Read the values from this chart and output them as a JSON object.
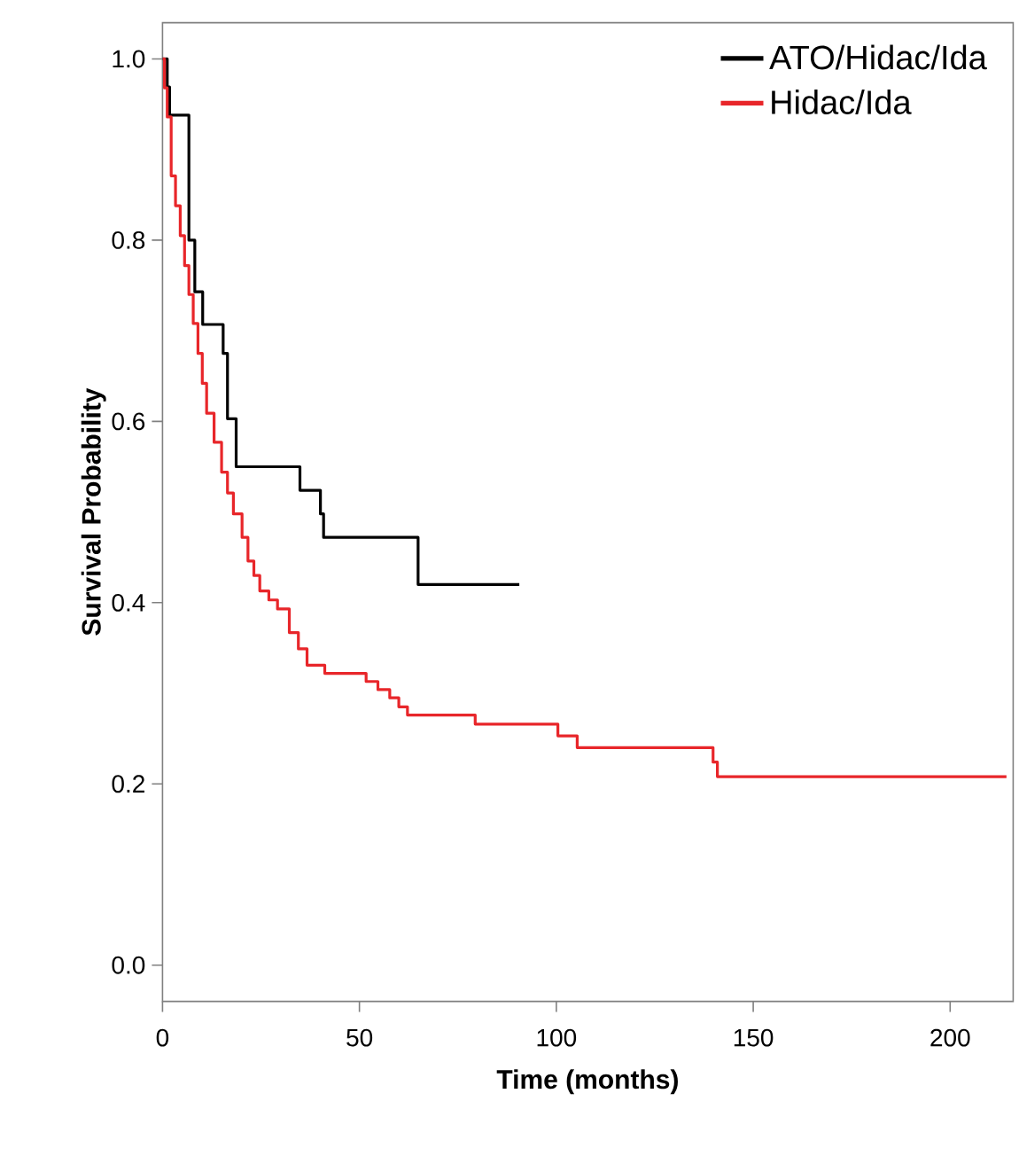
{
  "chart_data": {
    "type": "step",
    "xlabel": "Time  (months)",
    "ylabel": "Survival Probability",
    "xlim": [
      0,
      216
    ],
    "ylim": [
      -0.04,
      1.04
    ],
    "xticks": [
      0,
      50,
      100,
      150,
      200
    ],
    "yticks": [
      {
        "value": 0,
        "label": "0.0"
      },
      0.2,
      0.4,
      0.6,
      0.8,
      {
        "value": 1,
        "label": "1.0"
      }
    ],
    "legend": "top right",
    "grid": false,
    "marker": "none",
    "line_style": "solid",
    "series": [
      {
        "name": "ATO/Hidac/Ida",
        "color": "#000000",
        "x": [
          0,
          1.2,
          1.8,
          6.7,
          8.2,
          10.2,
          15.4,
          16.5,
          18.7,
          34.9,
          40.1,
          40.9,
          64.9,
          90.6
        ],
        "values": [
          1.0,
          0.969,
          0.938,
          0.8,
          0.743,
          0.707,
          0.675,
          0.603,
          0.55,
          0.524,
          0.498,
          0.472,
          0.42,
          0.42
        ]
      },
      {
        "name": "Hidac/Ida",
        "color": "#e8262a",
        "x": [
          0,
          0.5,
          1.2,
          2.2,
          3.3,
          4.5,
          5.6,
          6.7,
          7.8,
          9.0,
          10.1,
          11.2,
          13.1,
          15.0,
          16.5,
          18.0,
          20.2,
          21.7,
          23.2,
          24.7,
          27,
          29.2,
          32.2,
          34.5,
          36.7,
          41.2,
          51.7,
          54.7,
          57.7,
          60,
          62.2,
          79.4,
          100.4,
          105.3,
          139.8,
          140.9,
          214.3
        ],
        "values": [
          1.0,
          0.968,
          0.936,
          0.871,
          0.838,
          0.805,
          0.772,
          0.74,
          0.708,
          0.675,
          0.642,
          0.609,
          0.577,
          0.544,
          0.521,
          0.498,
          0.472,
          0.446,
          0.43,
          0.413,
          0.403,
          0.393,
          0.367,
          0.349,
          0.331,
          0.322,
          0.313,
          0.304,
          0.295,
          0.285,
          0.276,
          0.266,
          0.253,
          0.24,
          0.224,
          0.208,
          0.208
        ]
      }
    ]
  }
}
